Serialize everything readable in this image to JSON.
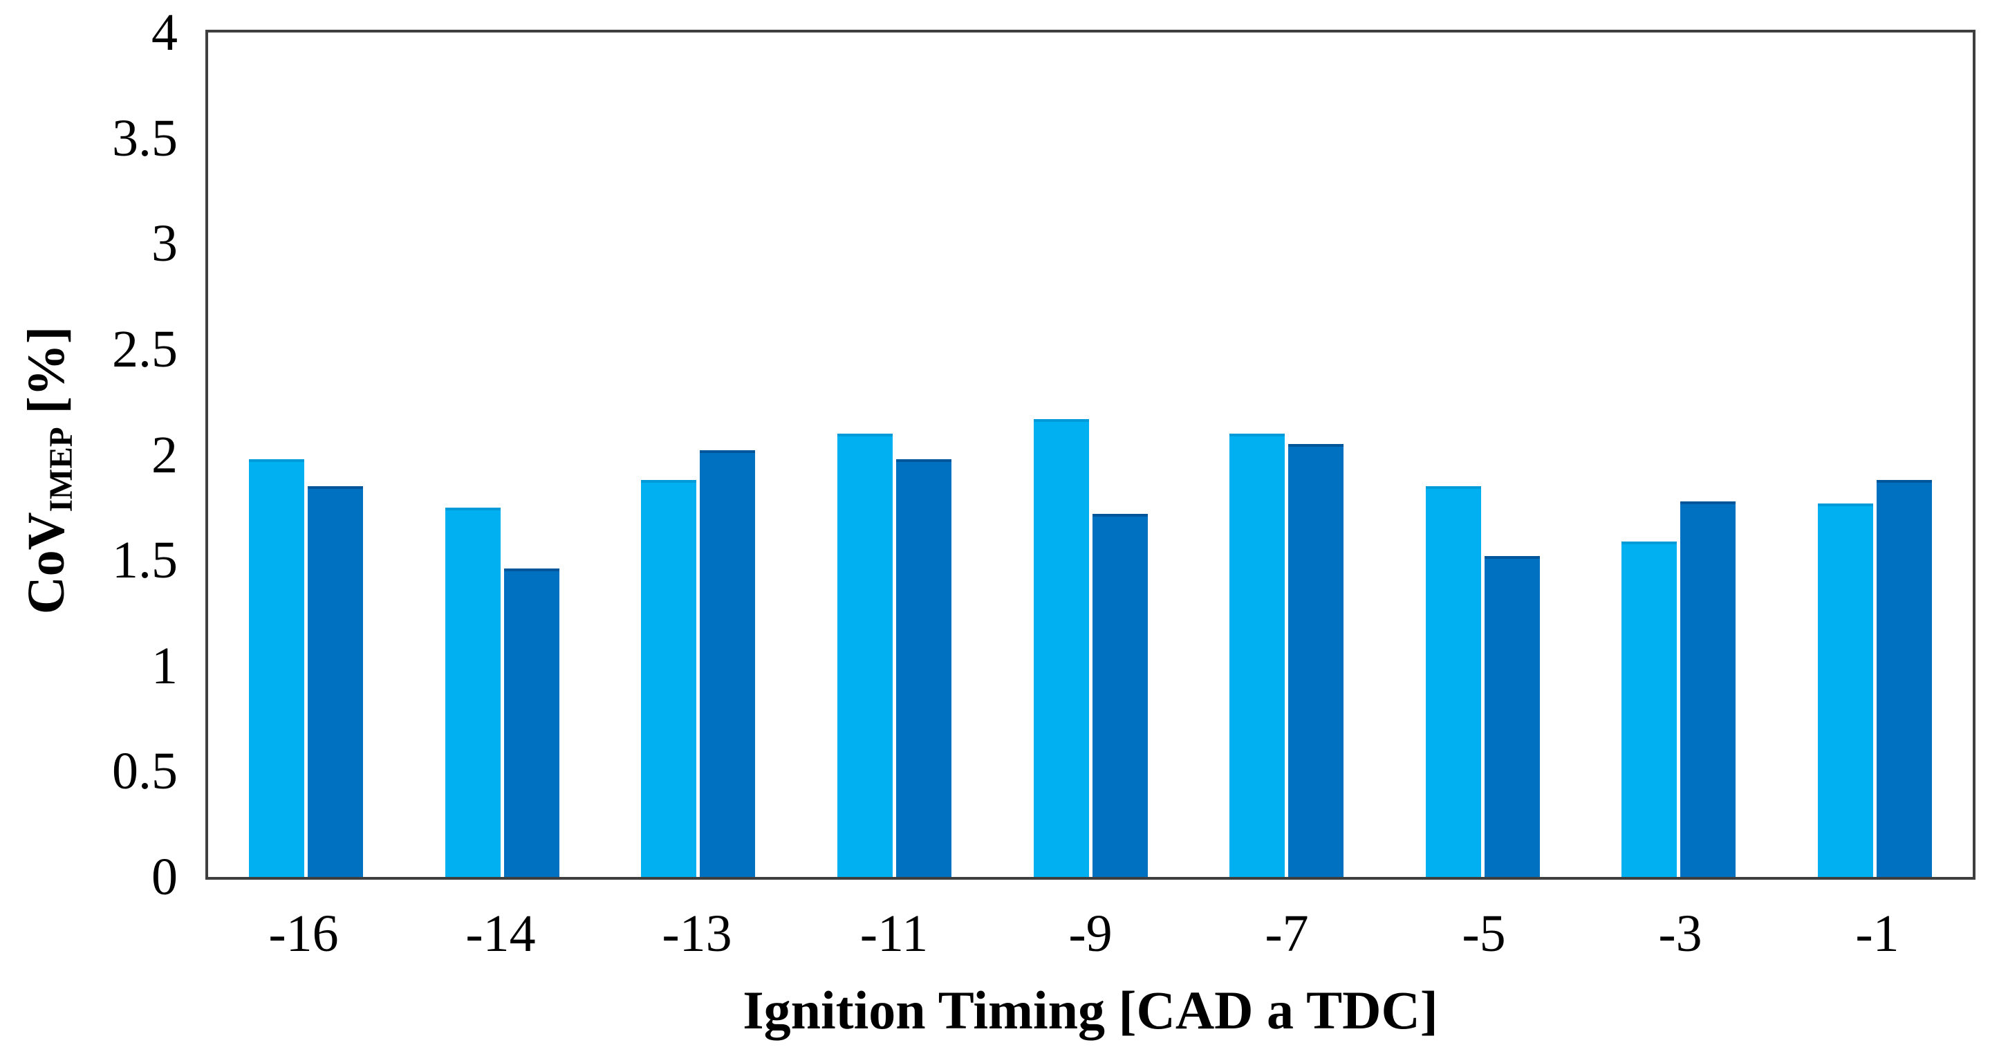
{
  "chart_data": {
    "type": "bar",
    "title": "",
    "xlabel": "Ignition Timing [CAD a TDC]",
    "ylabel": "CoV_IMEP [%]",
    "ylabel_parts": {
      "main": "CoV",
      "sub": "IMEP",
      "unit": " [%]"
    },
    "categories": [
      "-16",
      "-14",
      "-13",
      "-11",
      "-9",
      "-7",
      "-5",
      "-3",
      "-1"
    ],
    "series": [
      {
        "name": "light blue",
        "color": "#00b0f0",
        "values": [
          1.98,
          1.75,
          1.88,
          2.1,
          2.17,
          2.1,
          1.85,
          1.59,
          1.77
        ]
      },
      {
        "name": "dark blue",
        "color": "#0070c0",
        "values": [
          1.85,
          1.46,
          2.02,
          1.98,
          1.72,
          2.05,
          1.52,
          1.78,
          1.88
        ]
      }
    ],
    "ylim": [
      0,
      4
    ],
    "ytick_step": 0.5,
    "ytick_labels": [
      "0",
      "0.5",
      "1",
      "1.5",
      "2",
      "2.5",
      "3",
      "3.5",
      "4"
    ],
    "grid": false,
    "legend": false,
    "axis_color": "#3f3f3f",
    "background_color": "#ffffff"
  }
}
